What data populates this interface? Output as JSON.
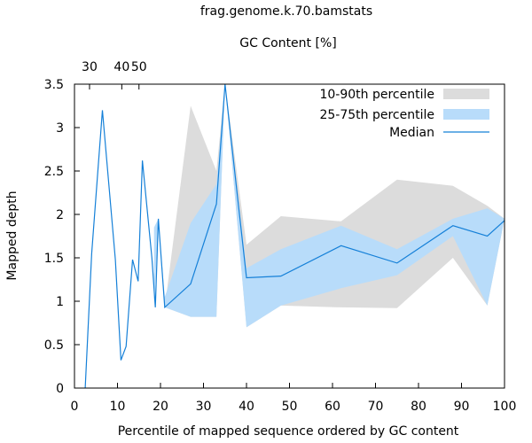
{
  "chart_data": {
    "type": "area",
    "title": "frag.genome.k.70.bamstats",
    "xlabel": "Percentile of mapped sequence ordered by GC content",
    "ylabel": "Mapped depth",
    "x2label": "GC Content [%]",
    "xlim": [
      0,
      100
    ],
    "ylim": [
      0,
      3.5
    ],
    "grid": false,
    "legend_position": "top-right",
    "x_ticks": [
      0,
      10,
      20,
      30,
      40,
      50,
      60,
      70,
      80,
      90,
      100
    ],
    "y_ticks": [
      0,
      0.5,
      1,
      1.5,
      2,
      2.5,
      3,
      3.5
    ],
    "x2_ticks": [
      {
        "label": "30",
        "x": 3.5
      },
      {
        "label": "40",
        "x": 11
      },
      {
        "label": "50",
        "x": 15
      }
    ],
    "colors": {
      "band_10_90": "#dcdcdc",
      "band_25_75": "#b8dcfa",
      "median": "#1580d8"
    },
    "series": [
      {
        "name": "10-90th percentile",
        "kind": "band",
        "x": [
          21,
          27,
          33,
          35,
          40,
          48,
          62,
          75,
          88,
          96,
          100
        ],
        "low": [
          0.93,
          0.82,
          0.82,
          3.5,
          0.7,
          0.95,
          0.93,
          0.92,
          1.5,
          0.95,
          1.95
        ],
        "high": [
          0.93,
          3.25,
          2.5,
          3.5,
          1.65,
          1.98,
          1.92,
          2.4,
          2.33,
          2.1,
          1.95
        ]
      },
      {
        "name": "25-75th percentile",
        "kind": "band",
        "x": [
          18.5,
          19.5,
          21,
          27,
          33,
          35,
          40,
          48,
          62,
          75,
          88,
          96,
          100
        ],
        "low": [
          0.93,
          1.95,
          0.93,
          0.82,
          0.82,
          3.5,
          0.7,
          0.95,
          1.15,
          1.3,
          1.75,
          0.95,
          1.95
        ],
        "high": [
          1.85,
          1.95,
          1.05,
          1.9,
          2.35,
          3.5,
          1.38,
          1.6,
          1.87,
          1.6,
          1.95,
          2.07,
          1.95
        ]
      },
      {
        "name": "Median",
        "kind": "line",
        "x": [
          2.5,
          4,
          6.5,
          9.5,
          10.8,
          12,
          13.5,
          14.8,
          15.8,
          18,
          18.8,
          19.5,
          21,
          27,
          33,
          35,
          40,
          48,
          62,
          75,
          88,
          96,
          100
        ],
        "y": [
          0,
          1.55,
          3.2,
          1.48,
          0.32,
          0.48,
          1.48,
          1.23,
          2.62,
          1.5,
          0.93,
          1.95,
          0.93,
          1.2,
          2.12,
          3.5,
          1.27,
          1.29,
          1.64,
          1.44,
          1.87,
          1.75,
          1.93
        ]
      }
    ]
  }
}
